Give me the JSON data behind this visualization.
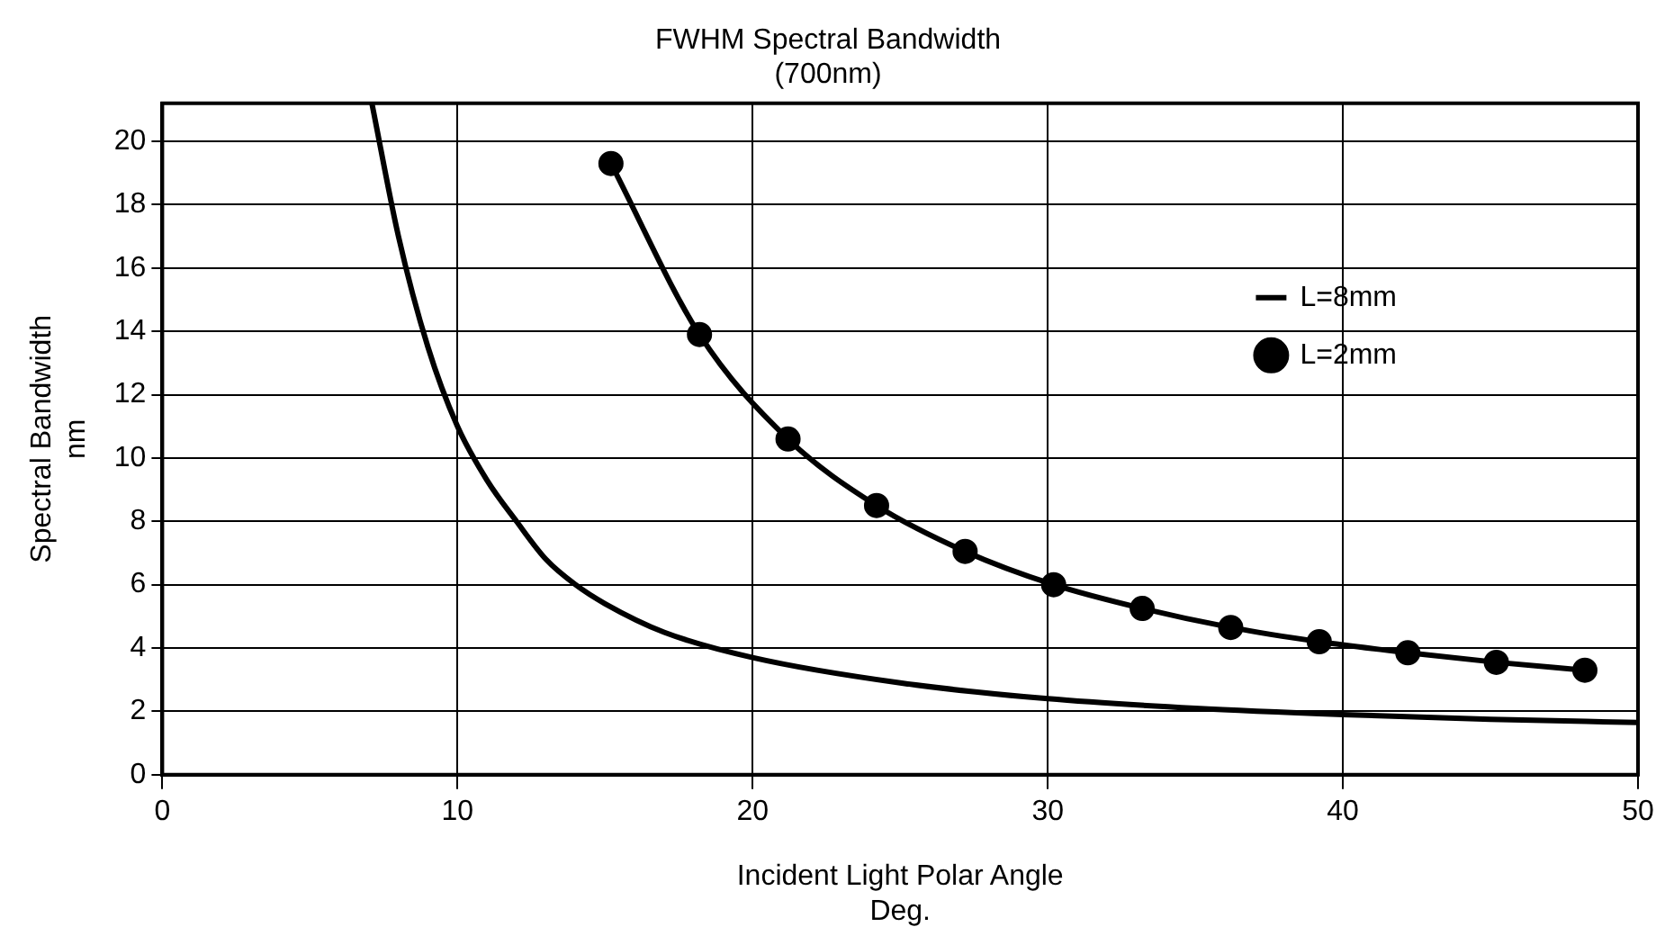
{
  "chart_data": {
    "type": "line",
    "title": "FWHM Spectral Bandwidth\n(700nm)",
    "xlabel": "Incident Light Polar Angle\nDeg.",
    "ylabel": "Spectral Bandwidth\nnm",
    "xlim": [
      0,
      50
    ],
    "xticks": [
      0,
      10,
      20,
      30,
      40,
      50
    ],
    "ylim": [
      0,
      21.2
    ],
    "yticks": [
      0,
      2,
      4,
      6,
      8,
      10,
      12,
      14,
      16,
      18,
      20
    ],
    "grid": true,
    "legend": "right",
    "series": [
      {
        "name": "L=8mm",
        "color": "#000000",
        "marker": "none",
        "x": [
          7.1,
          8,
          9,
          10,
          11,
          12,
          13,
          14,
          15,
          17,
          20,
          25,
          30,
          35,
          40,
          45,
          50
        ],
        "values": [
          21.2,
          17,
          13.5,
          11,
          9.3,
          8,
          6.8,
          6,
          5.4,
          4.5,
          3.7,
          2.9,
          2.4,
          2.1,
          1.9,
          1.75,
          1.65
        ]
      },
      {
        "name": "L=2mm",
        "color": "#000000",
        "marker": "circle",
        "x": [
          15.2,
          18.2,
          21.2,
          24.2,
          27.2,
          30.2,
          33.2,
          36.2,
          39.2,
          42.2,
          45.2,
          48.2
        ],
        "values": [
          19.3,
          13.9,
          10.6,
          8.5,
          7.05,
          6.0,
          5.25,
          4.65,
          4.2,
          3.85,
          3.55,
          3.3
        ]
      }
    ]
  }
}
